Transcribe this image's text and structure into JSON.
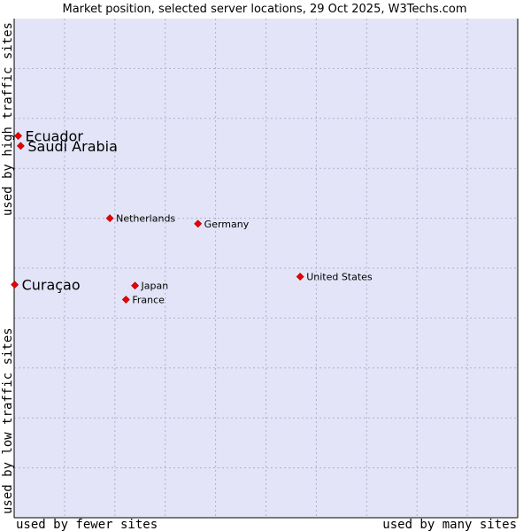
{
  "chart_data": {
    "type": "scatter",
    "title": "Market position, selected server locations, 29 Oct 2025, W3Techs.com",
    "xlabel_low": "used by fewer sites",
    "xlabel_high": "used by many sites",
    "ylabel_low": "used by low traffic sites",
    "ylabel_high": "used by high traffic sites",
    "xlim": [
      0,
      100
    ],
    "ylim": [
      0,
      100
    ],
    "grid": true,
    "points": [
      {
        "label": "Ecuador",
        "x": 0.8,
        "y": 76.5,
        "emphasis": true
      },
      {
        "label": "Saudi Arabia",
        "x": 1.3,
        "y": 74.5,
        "emphasis": true
      },
      {
        "label": "Netherlands",
        "x": 19.0,
        "y": 60.0,
        "emphasis": false
      },
      {
        "label": "Germany",
        "x": 36.5,
        "y": 58.9,
        "emphasis": false
      },
      {
        "label": "Curaçao",
        "x": 0.1,
        "y": 46.7,
        "emphasis": true
      },
      {
        "label": "United States",
        "x": 56.8,
        "y": 48.3,
        "emphasis": false
      },
      {
        "label": "Japan",
        "x": 24.0,
        "y": 46.5,
        "emphasis": false
      },
      {
        "label": "France",
        "x": 22.2,
        "y": 43.7,
        "emphasis": false
      }
    ]
  },
  "colors": {
    "plot_bg": "#e4e4f8",
    "grid": "#b0b0c8",
    "axis": "#000000",
    "marker": "#ee0000"
  }
}
